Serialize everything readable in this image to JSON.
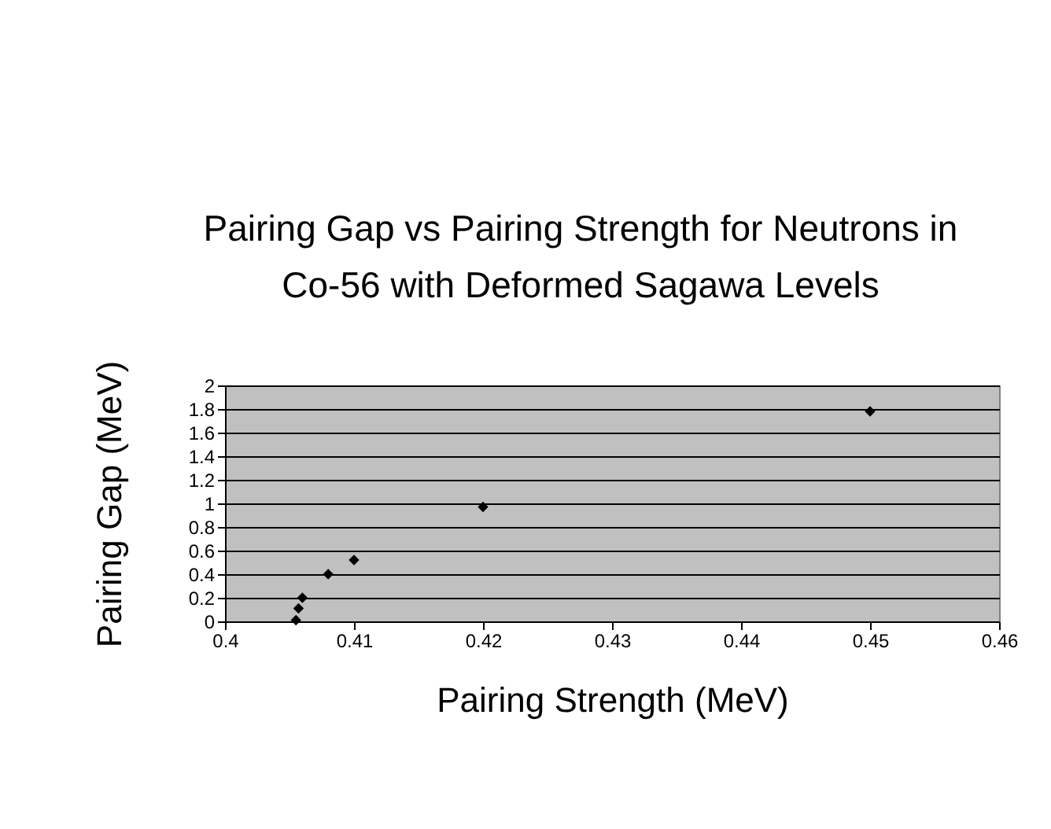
{
  "chart_data": {
    "type": "scatter",
    "title": [
      "Pairing Gap vs Pairing Strength for Neutrons in",
      "Co-56 with Deformed Sagawa Levels"
    ],
    "xlabel": "Pairing Strength (MeV)",
    "ylabel": "Pairing Gap (MeV)",
    "x": [
      0.4055,
      0.4057,
      0.406,
      0.408,
      0.41,
      0.42,
      0.45
    ],
    "series": [
      {
        "color": "#000000",
        "values": [
          0.01,
          0.11,
          0.2,
          0.4,
          0.52,
          0.97,
          1.78
        ]
      }
    ],
    "xlim": [
      0.4,
      0.46
    ],
    "xticks": [
      0.4,
      0.41,
      0.42,
      0.43,
      0.44,
      0.45,
      0.46
    ],
    "ylim": [
      0,
      2
    ],
    "yticks": [
      0,
      0.2,
      0.4,
      0.6,
      0.8,
      1,
      1.2,
      1.4,
      1.6,
      1.8,
      2
    ],
    "grid": "y",
    "marker": "diamond",
    "legend": false
  }
}
